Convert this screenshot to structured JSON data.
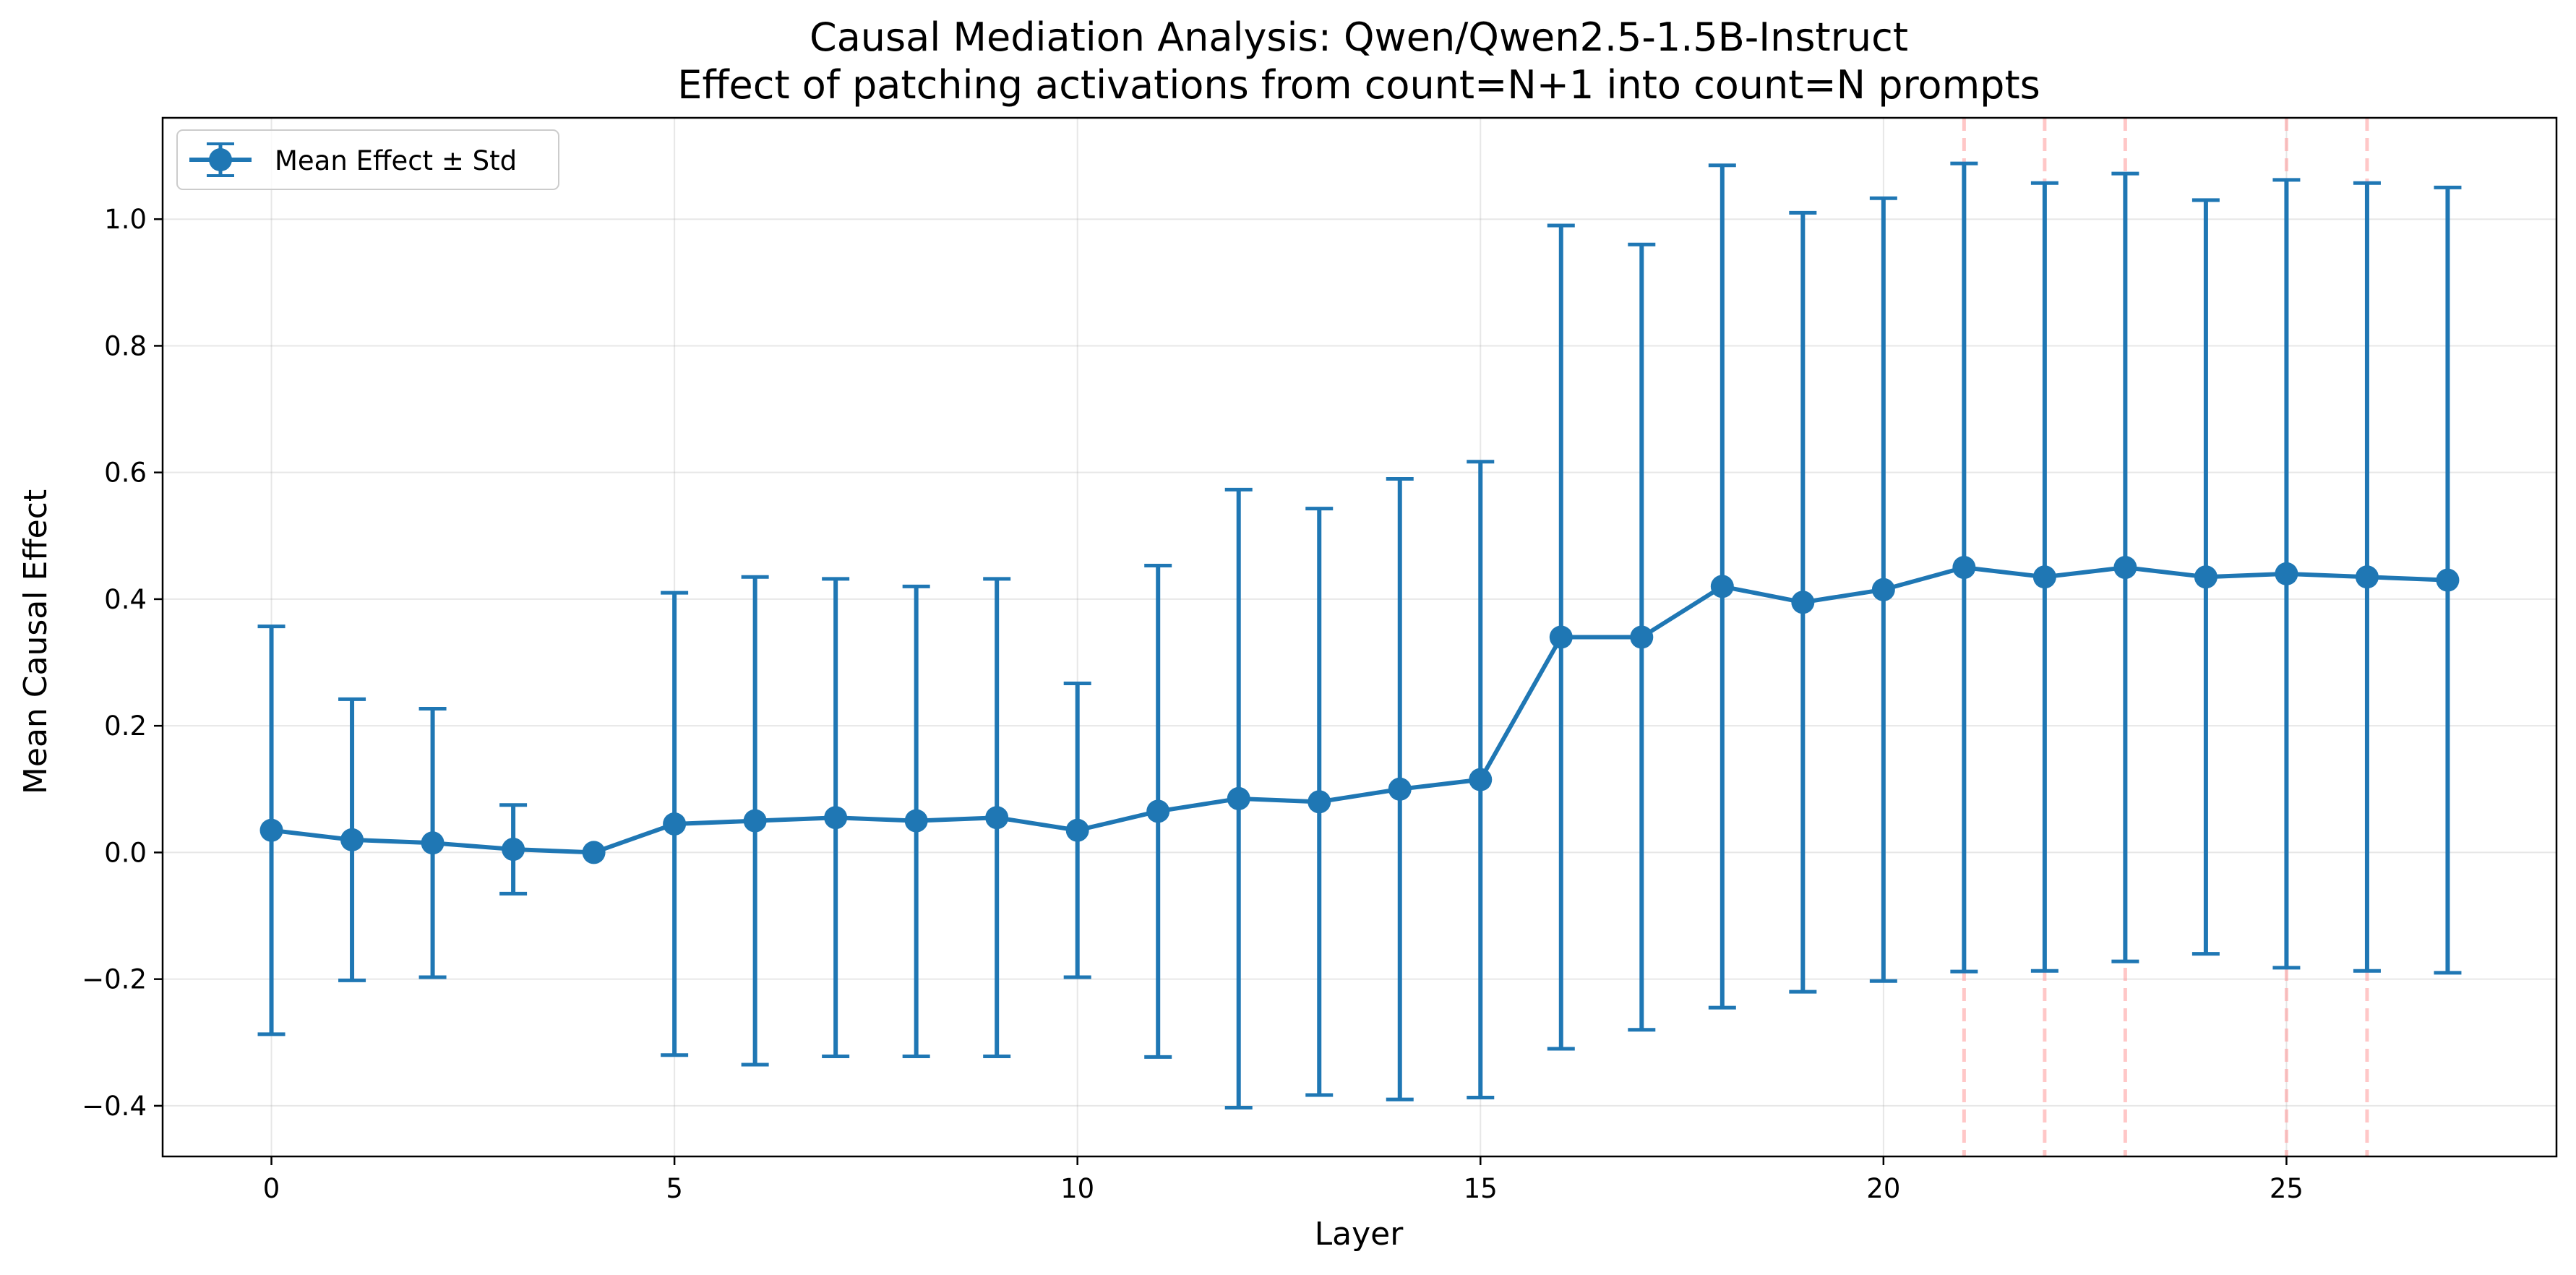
{
  "chart_data": {
    "type": "line",
    "title": "Causal Mediation Analysis: Qwen/Qwen2.5-1.5B-Instruct",
    "subtitle": "Effect of patching activations from count=N+1 into count=N prompts",
    "xlabel": "Layer",
    "ylabel": "Mean Causal Effect",
    "xlim": [
      -1.35,
      28.35
    ],
    "ylim": [
      -0.48,
      1.16
    ],
    "xticks": [
      0,
      5,
      10,
      15,
      20,
      25
    ],
    "yticks": [
      -0.4,
      -0.2,
      0.0,
      0.2,
      0.4,
      0.6,
      0.8,
      1.0
    ],
    "xtick_labels": [
      "0",
      "5",
      "10",
      "15",
      "20",
      "25"
    ],
    "ytick_labels": [
      "−0.4",
      "−0.2",
      "0.0",
      "0.2",
      "0.4",
      "0.6",
      "0.8",
      "1.0"
    ],
    "grid": true,
    "legend": {
      "position": "top-left",
      "entries": [
        "Mean Effect ± Std"
      ]
    },
    "series": [
      {
        "name": "Mean Effect ± Std",
        "color": "#1f77b4",
        "x": [
          0,
          1,
          2,
          3,
          4,
          5,
          6,
          7,
          8,
          9,
          10,
          11,
          12,
          13,
          14,
          15,
          16,
          17,
          18,
          19,
          20,
          21,
          22,
          23,
          24,
          25,
          26,
          27
        ],
        "y": [
          0.035,
          0.02,
          0.015,
          0.005,
          0.0,
          0.045,
          0.05,
          0.055,
          0.05,
          0.055,
          0.035,
          0.065,
          0.085,
          0.08,
          0.1,
          0.115,
          0.34,
          0.34,
          0.42,
          0.395,
          0.415,
          0.45,
          0.435,
          0.45,
          0.435,
          0.44,
          0.435,
          0.43
        ],
        "err_upper": [
          0.357,
          0.242,
          0.227,
          0.075,
          null,
          0.41,
          0.435,
          0.432,
          0.42,
          0.432,
          0.267,
          0.453,
          0.573,
          0.543,
          0.59,
          0.617,
          0.99,
          0.96,
          1.085,
          1.01,
          1.033,
          1.088,
          1.057,
          1.072,
          1.03,
          1.062,
          1.057,
          1.05
        ],
        "err_lower": [
          -0.287,
          -0.202,
          -0.197,
          -0.065,
          null,
          -0.32,
          -0.335,
          -0.322,
          -0.322,
          -0.322,
          -0.197,
          -0.323,
          -0.403,
          -0.383,
          -0.39,
          -0.387,
          -0.31,
          -0.28,
          -0.245,
          -0.22,
          -0.203,
          -0.188,
          -0.187,
          -0.172,
          -0.16,
          -0.182,
          -0.187,
          -0.19
        ]
      }
    ],
    "highlighted_layers": [
      21,
      22,
      23,
      25,
      26
    ],
    "highlight_color": "#ff9999"
  }
}
